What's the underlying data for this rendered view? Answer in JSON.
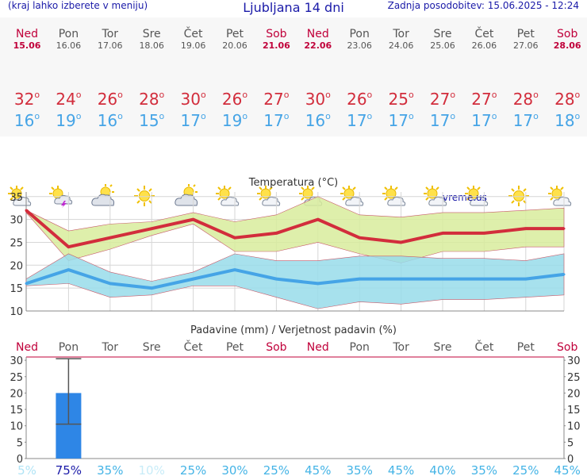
{
  "header": {
    "left": "(kraj lahko izberete v meniju)",
    "title": "Ljubljana 14 dni",
    "right": "Zadnja posodobitev: 15.06.2025 - 12:24"
  },
  "days": [
    {
      "name": "Ned",
      "date": "15.06",
      "weekend": true,
      "icon": "sun-cloud-icon",
      "max": "32",
      "min": "16"
    },
    {
      "name": "Pon",
      "date": "16.06",
      "weekend": false,
      "icon": "sun-cloud-lightning-icon",
      "max": "24",
      "min": "19"
    },
    {
      "name": "Tor",
      "date": "17.06",
      "weekend": false,
      "icon": "cloud-sun-icon",
      "max": "26",
      "min": "16"
    },
    {
      "name": "Sre",
      "date": "18.06",
      "weekend": false,
      "icon": "sun-icon",
      "max": "28",
      "min": "15"
    },
    {
      "name": "Čet",
      "date": "19.06",
      "weekend": false,
      "icon": "cloud-sun-icon",
      "max": "30",
      "min": "17"
    },
    {
      "name": "Pet",
      "date": "20.06",
      "weekend": false,
      "icon": "sun-cloud-icon",
      "max": "26",
      "min": "19"
    },
    {
      "name": "Sob",
      "date": "21.06",
      "weekend": true,
      "icon": "sun-cloud-icon",
      "max": "27",
      "min": "17"
    },
    {
      "name": "Ned",
      "date": "22.06",
      "weekend": true,
      "icon": "sun-cloud-icon",
      "max": "30",
      "min": "16"
    },
    {
      "name": "Pon",
      "date": "23.06",
      "weekend": false,
      "icon": "sun-cloud-icon",
      "max": "26",
      "min": "17"
    },
    {
      "name": "Tor",
      "date": "24.06",
      "weekend": false,
      "icon": "sun-cloud-icon",
      "max": "25",
      "min": "17"
    },
    {
      "name": "Sre",
      "date": "25.06",
      "weekend": false,
      "icon": "sun-cloud-icon",
      "max": "27",
      "min": "17"
    },
    {
      "name": "Čet",
      "date": "26.06",
      "weekend": false,
      "icon": "sun-cloud-icon",
      "max": "27",
      "min": "17"
    },
    {
      "name": "Pet",
      "date": "27.06",
      "weekend": false,
      "icon": "sun-icon",
      "max": "28",
      "min": "17"
    },
    {
      "name": "Sob",
      "date": "28.06",
      "weekend": true,
      "icon": "sun-cloud-icon",
      "max": "28",
      "min": "18"
    }
  ],
  "chart_data": [
    {
      "type": "line",
      "title": "Temperatura (°C)",
      "watermark": "vreme.us",
      "x": [
        "15.06",
        "16.06",
        "17.06",
        "18.06",
        "19.06",
        "20.06",
        "21.06",
        "22.06",
        "23.06",
        "24.06",
        "25.06",
        "26.06",
        "27.06",
        "28.06"
      ],
      "ylim": [
        10,
        36
      ],
      "yticks": [
        10,
        15,
        20,
        25,
        30,
        35
      ],
      "grid": true,
      "series": [
        {
          "values": [
            32,
            24,
            26,
            28,
            30,
            26,
            27,
            30,
            26,
            25,
            27,
            27,
            28,
            28
          ],
          "color": "#d22d3c"
        },
        {
          "values": [
            16,
            19,
            16,
            15,
            17,
            19,
            17,
            16,
            17,
            17,
            17,
            17,
            17,
            18
          ],
          "color": "#45a4e6"
        }
      ],
      "bands": [
        {
          "upper": [
            32,
            27.5,
            29,
            29.5,
            31.5,
            29.5,
            31,
            35,
            31,
            30.5,
            31.5,
            31.5,
            32,
            32.5
          ],
          "lower": [
            31.5,
            21,
            23.5,
            26.5,
            29,
            23,
            23,
            25,
            22.5,
            20.5,
            23,
            23,
            24,
            24
          ],
          "color": "#d8ec9c"
        },
        {
          "upper": [
            17,
            22.5,
            18.5,
            16.5,
            18.5,
            22.5,
            21,
            21,
            22,
            22,
            21.5,
            21.5,
            21,
            22.5
          ],
          "lower": [
            15.5,
            16,
            13,
            13.5,
            15.5,
            15.5,
            13,
            10.5,
            12,
            11.5,
            12.5,
            12.5,
            13,
            13.5
          ],
          "color": "#98dcea"
        }
      ]
    },
    {
      "type": "bar",
      "title": "Padavine (mm) / Verjetnost padavin (%)",
      "categories": [
        "Ned",
        "Pon",
        "Tor",
        "Sre",
        "Čet",
        "Pet",
        "Sob",
        "Ned",
        "Pon",
        "Tor",
        "Sre",
        "Čet",
        "Pet",
        "Sob"
      ],
      "weekend": [
        true,
        false,
        false,
        false,
        false,
        false,
        true,
        true,
        false,
        false,
        false,
        false,
        false,
        true
      ],
      "values": [
        0,
        20,
        0,
        0,
        0,
        0,
        0,
        0,
        0,
        0,
        0,
        0,
        0,
        0
      ],
      "error_high": [
        0,
        30.5,
        0,
        0,
        0,
        0,
        0,
        0,
        0,
        0,
        0,
        0,
        0,
        0
      ],
      "error_low": [
        0,
        10.5,
        0,
        0,
        0,
        0,
        0,
        0,
        0,
        0,
        0,
        0,
        0,
        0
      ],
      "probability": [
        "5%",
        "75%",
        "35%",
        "10%",
        "25%",
        "30%",
        "25%",
        "45%",
        "35%",
        "45%",
        "40%",
        "35%",
        "25%",
        "45%"
      ],
      "prob_colors": [
        "#b0e4f6",
        "#1a1aa8",
        "#45b4e6",
        "#c8ecf8",
        "#45b4e6",
        "#45b4e6",
        "#45b4e6",
        "#45b4e6",
        "#45b4e6",
        "#45b4e6",
        "#45b4e6",
        "#45b4e6",
        "#45b4e6",
        "#45b4e6"
      ],
      "ylim": [
        0,
        31
      ],
      "yticks": [
        0,
        5,
        10,
        15,
        20,
        25,
        30
      ],
      "bar_color": "#2e86e6"
    }
  ]
}
